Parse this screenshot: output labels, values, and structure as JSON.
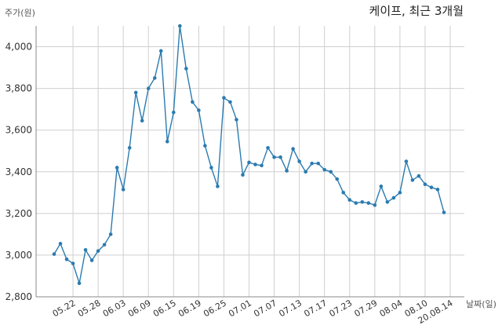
{
  "chart_data": {
    "type": "line",
    "title": "케이프, 최근 3개월",
    "ylabel": "주가(원)",
    "xlabel": "날짜(일)",
    "ylim": [
      2800,
      4100
    ],
    "yticks": [
      2800,
      3000,
      3200,
      3400,
      3600,
      3800,
      4000
    ],
    "ytick_labels": [
      "2,800",
      "3,000",
      "3,200",
      "3,400",
      "3,600",
      "3,800",
      "4,000"
    ],
    "grid": true,
    "line_color": "#2b7bb0",
    "x_tick_labels": [
      "05.22",
      "05.28",
      "06.03",
      "06.09",
      "06.15",
      "06.19",
      "06.25",
      "07.01",
      "07.07",
      "07.13",
      "07.17",
      "07.23",
      "07.29",
      "08.04",
      "08.10",
      "20.08.14"
    ],
    "x_tick_indices": [
      3,
      7,
      11,
      15,
      19,
      23,
      27,
      31,
      35,
      39,
      43,
      47,
      51,
      55,
      59,
      63
    ],
    "series": [
      {
        "values": [
          3005,
          3055,
          2980,
          2960,
          2865,
          3025,
          2975,
          3020,
          3050,
          3100,
          3420,
          3315,
          3515,
          3780,
          3645,
          3800,
          3850,
          3980,
          3545,
          3685,
          4100,
          3895,
          3735,
          3695,
          3525,
          3420,
          3330,
          3755,
          3735,
          3650,
          3385,
          3445,
          3435,
          3430,
          3515,
          3470,
          3470,
          3405,
          3510,
          3450,
          3400,
          3440,
          3440,
          3410,
          3400,
          3365,
          3300,
          3265,
          3250,
          3255,
          3250,
          3240,
          3330,
          3255,
          3275,
          3300,
          3450,
          3360,
          3380,
          3340,
          3325,
          3315,
          3205
        ]
      }
    ]
  }
}
